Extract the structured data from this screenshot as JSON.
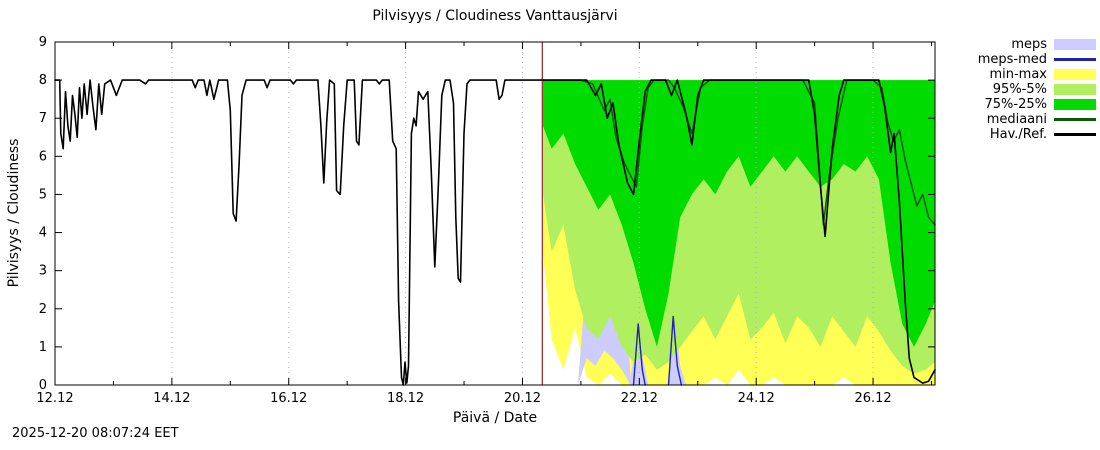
{
  "page": {
    "title": "Pilvisyys / Cloudiness Vanttausjärvi",
    "ylabel": "Pilvisyys / Cloudiness",
    "xlabel": "Päivä / Date",
    "timestamp": "2025-12-20 08:07:24 EET"
  },
  "chart_data": {
    "type": "area",
    "title": "Pilvisyys / Cloudiness Vanttausjärvi",
    "xlabel": "Päivä / Date",
    "ylabel": "Pilvisyys / Cloudiness",
    "xlim": [
      12.0,
      27.06
    ],
    "ylim": [
      0,
      9
    ],
    "grid": true,
    "grid_color": "#b0b0b0",
    "x_major_ticks": [
      {
        "x": 12,
        "label": "12.12"
      },
      {
        "x": 14,
        "label": "14.12"
      },
      {
        "x": 16,
        "label": "16.12"
      },
      {
        "x": 18,
        "label": "18.12"
      },
      {
        "x": 20,
        "label": "20.12"
      },
      {
        "x": 22,
        "label": "22.12"
      },
      {
        "x": 24,
        "label": "24.12"
      },
      {
        "x": 26,
        "label": "26.12"
      }
    ],
    "x_minor_ticks": [
      13,
      15,
      17,
      19,
      21,
      23,
      25,
      27
    ],
    "y_ticks": [
      0,
      1,
      2,
      3,
      4,
      5,
      6,
      7,
      8,
      9
    ],
    "now_line": {
      "x": 20.34,
      "color": "#993333"
    },
    "bands": [
      {
        "name": "min-max",
        "color": "#ffff55",
        "x": [
          20.35,
          20.5,
          20.7,
          20.9,
          21.1,
          21.3,
          21.5,
          21.7,
          21.9,
          22.1,
          22.3,
          22.5,
          22.7,
          22.9,
          23.1,
          23.3,
          23.5,
          23.7,
          23.9,
          24.1,
          24.3,
          24.5,
          24.7,
          24.9,
          25.1,
          25.3,
          25.5,
          25.7,
          25.9,
          26.1,
          26.3,
          26.5,
          26.7,
          26.9,
          27.06
        ],
        "upper": [
          8,
          8,
          8,
          8,
          8,
          8,
          8,
          8,
          8,
          8,
          8,
          8,
          8,
          8,
          8,
          8,
          8,
          8,
          8,
          8,
          8,
          8,
          8,
          8,
          8,
          8,
          8,
          8,
          8,
          8,
          8,
          8,
          8,
          8,
          8
        ],
        "lower": [
          3.5,
          1.2,
          0.4,
          1.5,
          0.2,
          0,
          0.3,
          0,
          0,
          0,
          0,
          0,
          0,
          0,
          0,
          0.2,
          0,
          0.4,
          0,
          0,
          0.2,
          0,
          0,
          0,
          0,
          0,
          0.2,
          0,
          0,
          0,
          0,
          0,
          0,
          0,
          0
        ]
      },
      {
        "name": "meps",
        "color": "#ccccff",
        "x": [
          20.95,
          21.1,
          21.25,
          21.4,
          21.55,
          21.7,
          21.85,
          21.95,
          22.0,
          22.05,
          22.15,
          22.5,
          22.55,
          22.6,
          22.7,
          22.8
        ],
        "upper": [
          0,
          3.0,
          5.8,
          6.5,
          5.5,
          3.5,
          0.2,
          1.2,
          1.8,
          0.8,
          0,
          0,
          1.0,
          1.9,
          0.5,
          0
        ],
        "lower": [
          0,
          0.7,
          0.5,
          0.9,
          0.7,
          0.4,
          0,
          0,
          0,
          0,
          0,
          0,
          0,
          0,
          0,
          0
        ]
      },
      {
        "name": "95%-5%",
        "color": "#b0ef5f",
        "x": [
          20.35,
          20.5,
          20.7,
          20.9,
          21.1,
          21.3,
          21.5,
          21.7,
          21.9,
          22.1,
          22.3,
          22.5,
          22.7,
          22.9,
          23.1,
          23.3,
          23.5,
          23.7,
          23.9,
          24.1,
          24.3,
          24.5,
          24.7,
          24.9,
          25.1,
          25.3,
          25.5,
          25.7,
          25.9,
          26.1,
          26.3,
          26.5,
          26.7,
          26.9,
          27.06
        ],
        "upper": [
          8,
          8,
          8,
          8,
          8,
          8,
          8,
          8,
          8,
          8,
          8,
          8,
          8,
          8,
          8,
          8,
          8,
          8,
          8,
          8,
          8,
          8,
          8,
          8,
          8,
          8,
          8,
          8,
          8,
          8,
          8,
          8,
          8,
          8,
          8
        ],
        "lower": [
          5.0,
          3.5,
          4.2,
          2.5,
          1.5,
          1.2,
          1.8,
          1.0,
          0.6,
          0.8,
          0.4,
          0.6,
          1.0,
          1.4,
          1.8,
          1.2,
          1.8,
          2.4,
          1.2,
          1.5,
          1.9,
          1.1,
          1.8,
          1.5,
          1.0,
          1.8,
          1.4,
          1.0,
          1.8,
          1.4,
          0.9,
          0.5,
          0.3,
          0.4,
          0.6
        ]
      },
      {
        "name": "75%-25%",
        "color": "#00dc00",
        "x": [
          20.35,
          20.5,
          20.7,
          20.9,
          21.1,
          21.3,
          21.5,
          21.7,
          21.9,
          22.1,
          22.3,
          22.5,
          22.7,
          22.9,
          23.1,
          23.3,
          23.5,
          23.7,
          23.9,
          24.1,
          24.3,
          24.5,
          24.7,
          24.9,
          25.1,
          25.3,
          25.5,
          25.7,
          25.9,
          26.1,
          26.3,
          26.5,
          26.7,
          26.9,
          27.06
        ],
        "upper": [
          8,
          8,
          8,
          8,
          8,
          8,
          8,
          8,
          8,
          8,
          8,
          8,
          8,
          8,
          8,
          8,
          8,
          8,
          8,
          8,
          8,
          8,
          8,
          8,
          8,
          8,
          8,
          8,
          8,
          8,
          8,
          8,
          8,
          8,
          8
        ],
        "lower": [
          6.8,
          6.2,
          6.6,
          5.8,
          5.2,
          4.6,
          5.0,
          4.2,
          3.2,
          2.0,
          1.0,
          2.4,
          4.4,
          5.0,
          5.4,
          5.0,
          5.6,
          6.0,
          5.2,
          5.6,
          6.0,
          5.6,
          6.0,
          5.6,
          5.2,
          5.4,
          5.8,
          5.6,
          6.0,
          5.4,
          3.2,
          1.6,
          1.0,
          1.6,
          2.2
        ]
      }
    ],
    "lines": [
      {
        "name": "meps-med",
        "color": "#2222b0",
        "width": 1.4,
        "points": [
          [
            21.9,
            0
          ],
          [
            21.98,
            1.6
          ],
          [
            22.05,
            0.4
          ],
          [
            22.1,
            0
          ],
          null,
          [
            22.5,
            0
          ],
          [
            22.58,
            1.8
          ],
          [
            22.65,
            0.5
          ],
          [
            22.72,
            0
          ]
        ]
      },
      {
        "name": "mediaani",
        "color": "#0b5a0b",
        "width": 1.5,
        "points": [
          [
            20.35,
            8
          ],
          [
            21.0,
            8
          ],
          [
            21.2,
            7.9
          ],
          [
            21.4,
            7.2
          ],
          [
            21.5,
            7.5
          ],
          [
            21.6,
            6.5
          ],
          [
            21.75,
            5.8
          ],
          [
            21.95,
            5.2
          ],
          [
            22.05,
            6.8
          ],
          [
            22.15,
            7.8
          ],
          [
            22.25,
            8
          ],
          [
            22.5,
            8
          ],
          [
            22.6,
            7.8
          ],
          [
            22.75,
            7.3
          ],
          [
            22.9,
            6.6
          ],
          [
            23.05,
            7.8
          ],
          [
            23.2,
            8
          ],
          [
            24.8,
            8
          ],
          [
            25.0,
            7.4
          ],
          [
            25.15,
            4.2
          ],
          [
            25.25,
            5.5
          ],
          [
            25.4,
            7.0
          ],
          [
            25.55,
            8
          ],
          [
            26.0,
            8
          ],
          [
            26.15,
            7.8
          ],
          [
            26.25,
            6.9
          ],
          [
            26.35,
            6.4
          ],
          [
            26.45,
            6.7
          ],
          [
            26.55,
            5.9
          ],
          [
            26.65,
            5.3
          ],
          [
            26.75,
            4.7
          ],
          [
            26.85,
            5.0
          ],
          [
            26.95,
            4.4
          ],
          [
            27.06,
            4.2
          ]
        ]
      },
      {
        "name": "hav-ref",
        "color": "#000000",
        "width": 1.6,
        "points": [
          [
            12.0,
            8
          ],
          [
            12.08,
            8
          ],
          [
            12.1,
            6.6
          ],
          [
            12.14,
            6.2
          ],
          [
            12.18,
            7.7
          ],
          [
            12.22,
            6.8
          ],
          [
            12.26,
            6.4
          ],
          [
            12.3,
            7.6
          ],
          [
            12.34,
            7.1
          ],
          [
            12.38,
            6.5
          ],
          [
            12.42,
            7.8
          ],
          [
            12.46,
            7.0
          ],
          [
            12.5,
            7.9
          ],
          [
            12.55,
            7.1
          ],
          [
            12.6,
            8
          ],
          [
            12.65,
            7.3
          ],
          [
            12.7,
            6.7
          ],
          [
            12.75,
            7.9
          ],
          [
            12.8,
            7.1
          ],
          [
            12.85,
            7.9
          ],
          [
            12.95,
            8
          ],
          [
            13.05,
            7.6
          ],
          [
            13.15,
            8
          ],
          [
            13.45,
            8
          ],
          [
            13.55,
            7.9
          ],
          [
            13.6,
            8
          ],
          [
            14.35,
            8
          ],
          [
            14.4,
            7.8
          ],
          [
            14.45,
            8
          ],
          [
            14.55,
            8
          ],
          [
            14.6,
            7.6
          ],
          [
            14.65,
            8
          ],
          [
            14.72,
            7.5
          ],
          [
            14.8,
            8
          ],
          [
            14.95,
            8
          ],
          [
            15.0,
            7.2
          ],
          [
            15.05,
            4.5
          ],
          [
            15.1,
            4.3
          ],
          [
            15.15,
            5.8
          ],
          [
            15.2,
            7.6
          ],
          [
            15.27,
            8
          ],
          [
            15.58,
            8
          ],
          [
            15.63,
            7.8
          ],
          [
            15.68,
            8
          ],
          [
            16.03,
            8
          ],
          [
            16.08,
            7.9
          ],
          [
            16.13,
            8
          ],
          [
            16.5,
            8
          ],
          [
            16.55,
            6.8
          ],
          [
            16.6,
            5.3
          ],
          [
            16.65,
            6.9
          ],
          [
            16.7,
            8
          ],
          [
            16.78,
            7.9
          ],
          [
            16.82,
            5.1
          ],
          [
            16.88,
            5.0
          ],
          [
            16.94,
            6.8
          ],
          [
            17.0,
            8
          ],
          [
            17.12,
            8
          ],
          [
            17.16,
            6.4
          ],
          [
            17.2,
            6.3
          ],
          [
            17.26,
            8
          ],
          [
            17.5,
            8
          ],
          [
            17.55,
            7.9
          ],
          [
            17.6,
            8
          ],
          [
            17.72,
            8
          ],
          [
            17.78,
            6.4
          ],
          [
            17.84,
            6.2
          ],
          [
            17.88,
            2.2
          ],
          [
            17.93,
            0.2
          ],
          [
            17.96,
            0.0
          ],
          [
            17.99,
            0.6
          ],
          [
            18.02,
            0.05
          ],
          [
            18.05,
            0.5
          ],
          [
            18.1,
            6.6
          ],
          [
            18.14,
            7.0
          ],
          [
            18.18,
            6.8
          ],
          [
            18.22,
            7.7
          ],
          [
            18.3,
            7.5
          ],
          [
            18.38,
            7.7
          ],
          [
            18.44,
            5.6
          ],
          [
            18.5,
            3.1
          ],
          [
            18.56,
            5.2
          ],
          [
            18.62,
            7.6
          ],
          [
            18.68,
            8
          ],
          [
            18.76,
            8
          ],
          [
            18.82,
            7.4
          ],
          [
            18.86,
            4.4
          ],
          [
            18.9,
            2.8
          ],
          [
            18.94,
            2.7
          ],
          [
            19.0,
            6.6
          ],
          [
            19.05,
            7.9
          ],
          [
            19.1,
            8
          ],
          [
            19.55,
            8
          ],
          [
            19.6,
            7.5
          ],
          [
            19.65,
            7.6
          ],
          [
            19.7,
            8
          ],
          [
            20.33,
            8
          ],
          [
            20.9,
            8
          ],
          [
            21.1,
            8
          ],
          [
            21.25,
            7.6
          ],
          [
            21.35,
            7.9
          ],
          [
            21.45,
            7.0
          ],
          [
            21.55,
            7.4
          ],
          [
            21.65,
            6.3
          ],
          [
            21.8,
            5.3
          ],
          [
            21.9,
            5.0
          ],
          [
            22.0,
            6.4
          ],
          [
            22.1,
            7.7
          ],
          [
            22.2,
            8
          ],
          [
            22.45,
            8
          ],
          [
            22.55,
            7.6
          ],
          [
            22.65,
            8
          ],
          [
            22.8,
            7.1
          ],
          [
            22.9,
            6.3
          ],
          [
            23.0,
            7.6
          ],
          [
            23.1,
            8
          ],
          [
            24.9,
            8
          ],
          [
            25.0,
            7.1
          ],
          [
            25.1,
            5.2
          ],
          [
            25.18,
            3.9
          ],
          [
            25.3,
            6.2
          ],
          [
            25.42,
            7.6
          ],
          [
            25.5,
            8
          ],
          [
            26.1,
            8
          ],
          [
            26.2,
            7.3
          ],
          [
            26.3,
            6.1
          ],
          [
            26.36,
            6.6
          ],
          [
            26.45,
            4.8
          ],
          [
            26.55,
            2.2
          ],
          [
            26.62,
            0.7
          ],
          [
            26.7,
            0.2
          ],
          [
            26.85,
            0.05
          ],
          [
            26.95,
            0.1
          ],
          [
            27.06,
            0.4
          ]
        ]
      }
    ],
    "legend": [
      {
        "label": "meps",
        "type": "box",
        "color": "#ccccff"
      },
      {
        "label": "meps-med",
        "type": "line",
        "color": "#2222b0"
      },
      {
        "label": "min-max",
        "type": "box",
        "color": "#ffff55"
      },
      {
        "label": "95%-5%",
        "type": "box",
        "color": "#b0ef5f"
      },
      {
        "label": "75%-25%",
        "type": "box",
        "color": "#00dc00"
      },
      {
        "label": "mediaani",
        "type": "line",
        "color": "#0b5a0b"
      },
      {
        "label": "Hav./Ref.",
        "type": "line",
        "color": "#000000"
      }
    ]
  }
}
